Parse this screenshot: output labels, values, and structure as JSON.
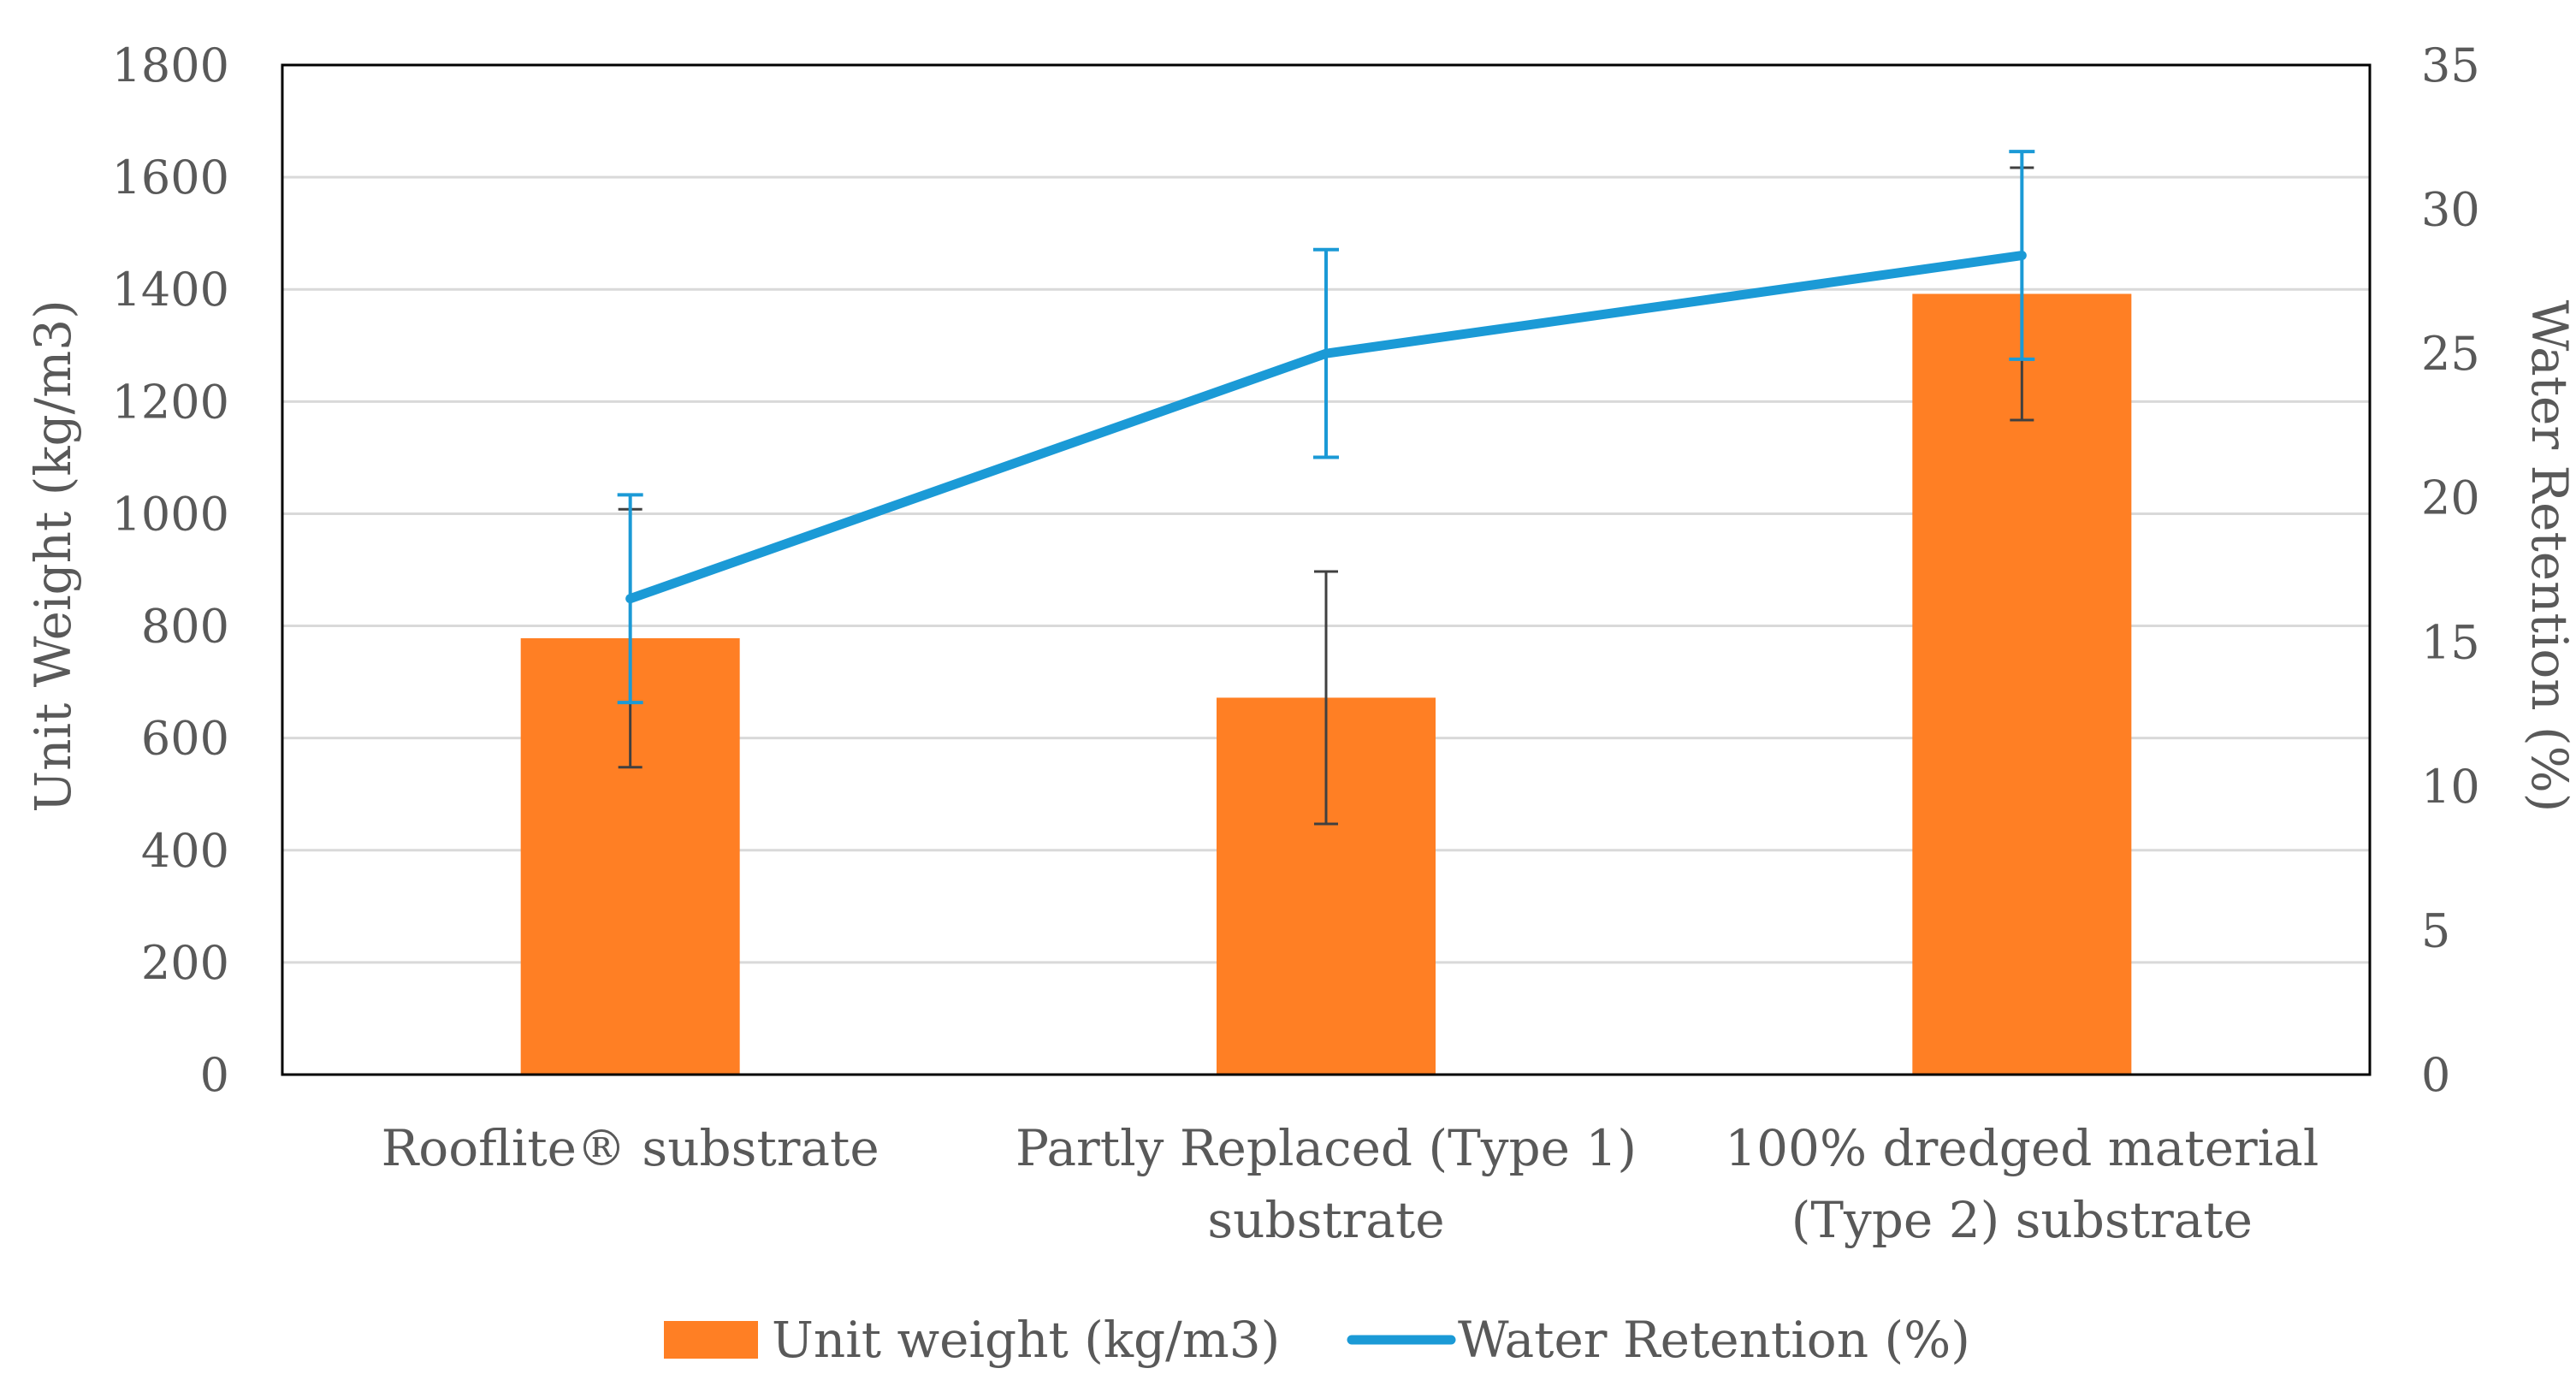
{
  "chart_data": {
    "type": "bar",
    "title": "",
    "categories": [
      [
        "Rooflite® substrate"
      ],
      [
        "Partly Replaced (Type 1)",
        "substrate"
      ],
      [
        "100% dredged material",
        "(Type 2) substrate"
      ]
    ],
    "ylabel_left": "Unit Weight (kg/m3)",
    "ylabel_right": "Water Retention (%)",
    "ylim_left": [
      0,
      1800
    ],
    "yticks_left": [
      0,
      200,
      400,
      600,
      800,
      1000,
      1200,
      1400,
      1600,
      1800
    ],
    "ylim_right": [
      0,
      35
    ],
    "yticks_right": [
      0,
      5,
      10,
      15,
      20,
      25,
      30,
      35
    ],
    "grid": true,
    "legend_position": "bottom",
    "series": [
      {
        "name": "Unit weight (kg/m3)",
        "kind": "bar",
        "axis": "left",
        "color": "#FF7F24",
        "values": [
          778,
          672,
          1392
        ],
        "error": [
          230,
          225,
          225
        ],
        "error_color": "#404040"
      },
      {
        "name": "Water Retention (%)",
        "kind": "line",
        "axis": "right",
        "color": "#1B9AD6",
        "values": [
          16.5,
          25.0,
          28.4
        ],
        "error": [
          3.6,
          3.6,
          3.6
        ],
        "error_color": "#1B9AD6"
      }
    ]
  }
}
